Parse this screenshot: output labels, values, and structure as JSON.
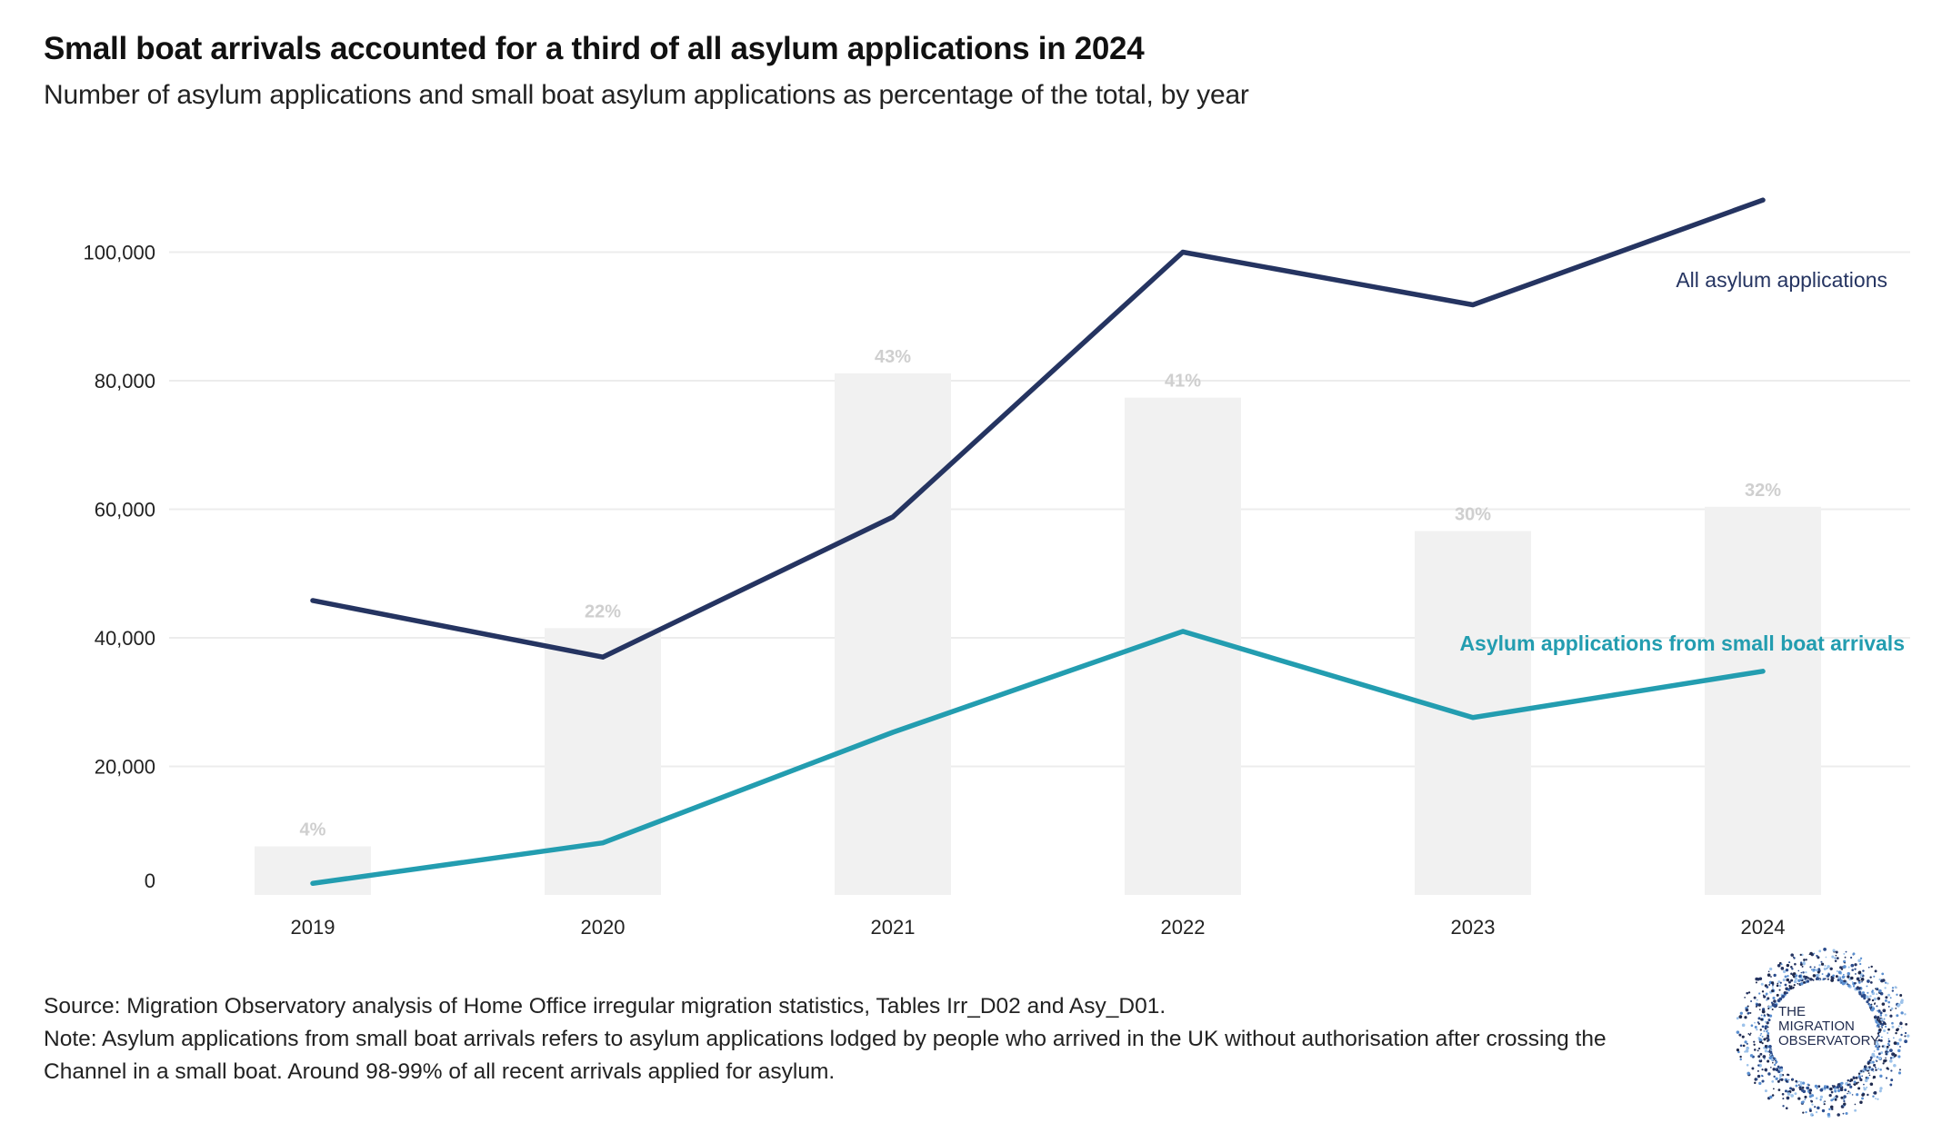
{
  "title": "Small boat arrivals accounted for a third of all asylum applications in 2024",
  "subtitle": "Number of asylum applications and small boat asylum applications as percentage of the total, by year",
  "footer": {
    "source": "Source: Migration Observatory analysis of Home Office irregular migration statistics, Tables Irr_D02 and Asy_D01.",
    "note_line1": "Note: Asylum applications from small boat arrivals refers to asylum applications lodged by people who arrived in the UK without authorisation after crossing the",
    "note_line2": "Channel in a small boat. Around 98-99% of all recent arrivals applied for asylum."
  },
  "logo": {
    "line1": "THE",
    "line2": "MIGRATION",
    "line3": "OBSERVATORY"
  },
  "chart_data": {
    "type": "line",
    "title": "Small boat arrivals accounted for a third of all asylum applications in 2024",
    "xlabel": "",
    "ylabel": "",
    "ylim": [
      0,
      110000
    ],
    "yticks": [
      0,
      20000,
      40000,
      60000,
      80000,
      100000
    ],
    "ytick_labels": [
      "0",
      "20,000",
      "40,000",
      "60,000",
      "80,000",
      "100,000"
    ],
    "categories": [
      "2019",
      "2020",
      "2021",
      "2022",
      "2023",
      "2024"
    ],
    "grid": true,
    "series": [
      {
        "name": "All asylum applications",
        "type": "line",
        "color": "#253461",
        "values": [
          45800,
          37000,
          58800,
          100000,
          91800,
          108100
        ]
      },
      {
        "name": "Asylum applications from small boat arrivals",
        "type": "line",
        "color": "#239db0",
        "values": [
          1800,
          8100,
          25300,
          41000,
          27600,
          34800
        ]
      },
      {
        "name": "Small boat share of total (%)",
        "type": "bar",
        "color": "#f1f1f1",
        "values": [
          4,
          22,
          43,
          41,
          30,
          32
        ],
        "labels": [
          "4%",
          "22%",
          "43%",
          "41%",
          "30%",
          "32%"
        ]
      }
    ]
  }
}
